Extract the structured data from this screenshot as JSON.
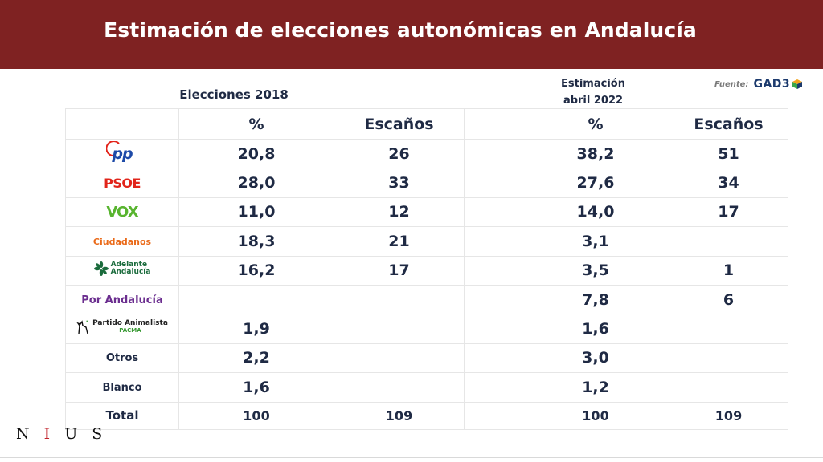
{
  "title": "Estimación de elecciones autonómicas en Andalucía",
  "group_2018": "Elecciones 2018",
  "group_2022_line1": "Estimación",
  "group_2022_line2": "abril 2022",
  "source_label": "Fuente:",
  "source_brand": "GAD3",
  "columns": {
    "pct_2018": "%",
    "seats_2018": "Escaños",
    "pct_2022": "%",
    "seats_2022": "Escaños"
  },
  "rows": [
    {
      "party": "PP",
      "pct_2018": "20,8",
      "seats_2018": "26",
      "pct_2022": "38,2",
      "seats_2022": "51"
    },
    {
      "party": "PSOE",
      "pct_2018": "28,0",
      "seats_2018": "33",
      "pct_2022": "27,6",
      "seats_2022": "34"
    },
    {
      "party": "VOX",
      "pct_2018": "11,0",
      "seats_2018": "12",
      "pct_2022": "14,0",
      "seats_2022": "17"
    },
    {
      "party": "Ciudadanos",
      "pct_2018": "18,3",
      "seats_2018": "21",
      "pct_2022": "3,1",
      "seats_2022": ""
    },
    {
      "party": "Adelante Andalucía",
      "pct_2018": "16,2",
      "seats_2018": "17",
      "pct_2022": "3,5",
      "seats_2022": "1"
    },
    {
      "party": "Por Andalucía",
      "pct_2018": "",
      "seats_2018": "",
      "pct_2022": "7,8",
      "seats_2022": "6"
    },
    {
      "party": "Partido Animalista PACMA",
      "pct_2018": "1,9",
      "seats_2018": "",
      "pct_2022": "1,6",
      "seats_2022": ""
    },
    {
      "party": "Otros",
      "pct_2018": "2,2",
      "seats_2018": "",
      "pct_2022": "3,0",
      "seats_2022": ""
    },
    {
      "party": "Blanco",
      "pct_2018": "1,6",
      "seats_2018": "",
      "pct_2022": "1,2",
      "seats_2022": ""
    }
  ],
  "total": {
    "label": "Total",
    "pct_2018": "100",
    "seats_2018": "109",
    "pct_2022": "100",
    "seats_2022": "109"
  },
  "logos": {
    "pp": "pp",
    "psoe": "PSOE",
    "vox": "VOX",
    "cs": "Ciudadanos",
    "aa_line1": "Adelante",
    "aa_line2": "Andalucía",
    "pacma_line1": "Partido Animalista",
    "pacma_line2": "PACMA"
  },
  "footer_brand": {
    "n": "N",
    "i": "I",
    "us": "U S"
  },
  "colors": {
    "banner": "#7f2222",
    "pp": "#1d4aa8",
    "psoe": "#e1241a",
    "vox": "#58b42f",
    "ciudadanos": "#ea6a19",
    "adelante": "#1a6b3c",
    "por_andalucia": "#6b2e8f"
  }
}
